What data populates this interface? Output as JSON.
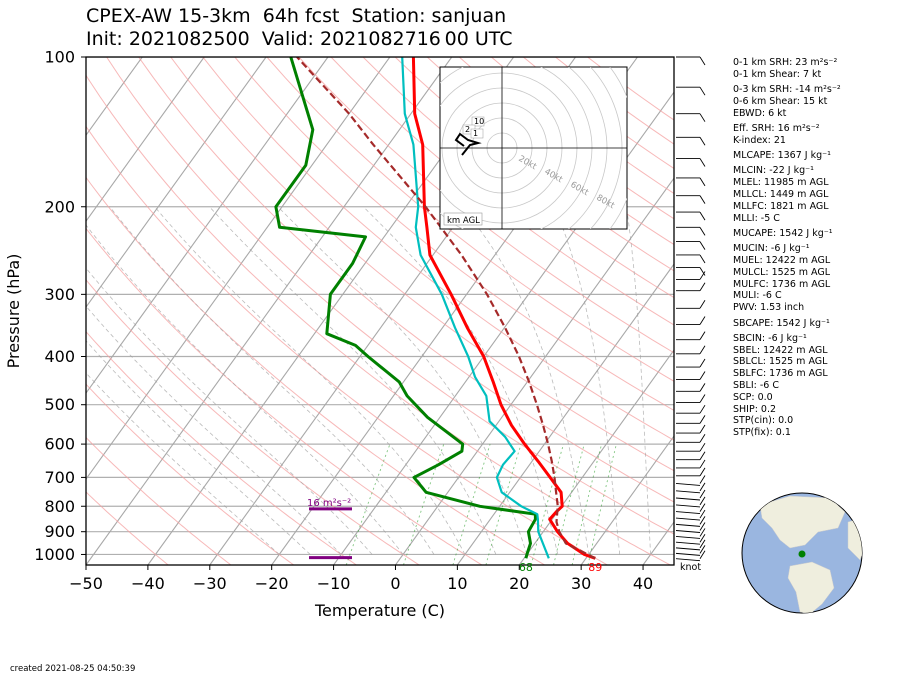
{
  "header": {
    "title_line1": "CPEX-AW 15-3km  64h fcst  Station: sanjuan",
    "title_line2": "Init: 2021082500  Valid: 2021082716 00 UTC"
  },
  "footer": {
    "created": "created 2021-08-25 04:50:39"
  },
  "stats": [
    {
      "label": "0-1 km SRH: 23 m²s⁻²"
    },
    {
      "label": "0-1 km Shear: 7 kt"
    },
    {
      "label": "0-3 km SRH: -14 m²s⁻²"
    },
    {
      "label": "0-6 km Shear: 15 kt"
    },
    {
      "label": "EBWD: 6 kt"
    },
    {
      "label": "Eff. SRH: 16 m²s⁻²"
    },
    {
      "label": "K-index: 21"
    },
    {
      "label": "MLCAPE: 1367 J kg⁻¹"
    },
    {
      "label": "MLCIN: -22 J kg⁻¹"
    },
    {
      "label": "MLEL: 11985 m AGL"
    },
    {
      "label": "MLLCL: 1449 m AGL"
    },
    {
      "label": "MLLFC: 1821 m AGL"
    },
    {
      "label": "MLLI: -5 C"
    },
    {
      "label": "MUCAPE: 1542 J kg⁻¹"
    },
    {
      "label": "MUCIN: -6 J kg⁻¹"
    },
    {
      "label": "MUEL: 12422 m AGL"
    },
    {
      "label": "MULCL: 1525 m AGL"
    },
    {
      "label": "MULFC: 1736 m AGL"
    },
    {
      "label": "MULI: -6 C"
    },
    {
      "label": "PWV: 1.53 inch"
    },
    {
      "label": "SBCAPE: 1542 J kg⁻¹"
    },
    {
      "label": "SBCIN: -6 J kg⁻¹"
    },
    {
      "label": "SBEL: 12422 m AGL"
    },
    {
      "label": "SBLCL: 1525 m AGL"
    },
    {
      "label": "SBLFC: 1736 m AGL"
    },
    {
      "label": "SBLI: -6 C"
    },
    {
      "label": "SCP: 0.0"
    },
    {
      "label": "SHIP: 0.2"
    },
    {
      "label": "STP(cin): 0.0"
    },
    {
      "label": "STP(fix): 0.1"
    }
  ],
  "chart_data": {
    "type": "line",
    "subtype": "skew-T log-P",
    "xlabel": "Temperature (C)",
    "ylabel": "Pressure (hPa)",
    "xlim": [
      -50,
      45
    ],
    "ylim": [
      1050,
      100
    ],
    "yscale": "log",
    "xticks": [
      "−50",
      "−40",
      "−30",
      "−20",
      "−10",
      "0",
      "10",
      "20",
      "30",
      "40"
    ],
    "yticks": [
      {
        "p": 100,
        "label": "100"
      },
      {
        "p": 200,
        "label": "200"
      },
      {
        "p": 300,
        "label": "300"
      },
      {
        "p": 400,
        "label": "400"
      },
      {
        "p": 500,
        "label": "500"
      },
      {
        "p": 600,
        "label": "600"
      },
      {
        "p": 700,
        "label": "700"
      },
      {
        "p": 800,
        "label": "800"
      },
      {
        "p": 900,
        "label": "900"
      },
      {
        "p": 1000,
        "label": "1000"
      }
    ],
    "colors": {
      "temperature": "#ff0000",
      "dewpoint": "#008000",
      "wetbulb": "#00bfbf",
      "parcel": "#a52a2a",
      "srh": "#800080"
    },
    "series": [
      {
        "key": "temperature",
        "points": [
          [
            1018,
            31.5
          ],
          [
            1000,
            29.3
          ],
          [
            950,
            25.3
          ],
          [
            900,
            22.3
          ],
          [
            850,
            19.6
          ],
          [
            820,
            19.8
          ],
          [
            800,
            20.1
          ],
          [
            750,
            18.3
          ],
          [
            700,
            14.8
          ],
          [
            650,
            11.0
          ],
          [
            600,
            6.8
          ],
          [
            550,
            2.5
          ],
          [
            500,
            -1.6
          ],
          [
            450,
            -5.5
          ],
          [
            400,
            -10.0
          ],
          [
            350,
            -16.0
          ],
          [
            300,
            -22.5
          ],
          [
            250,
            -30.5
          ],
          [
            220,
            -34.2
          ],
          [
            200,
            -37.0
          ],
          [
            150,
            -44.5
          ],
          [
            130,
            -49.4
          ],
          [
            100,
            -56.2
          ]
        ]
      },
      {
        "key": "dewpoint",
        "points": [
          [
            1018,
            20.3
          ],
          [
            1000,
            20.0
          ],
          [
            950,
            19.3
          ],
          [
            900,
            17.6
          ],
          [
            850,
            17.3
          ],
          [
            830,
            16.7
          ],
          [
            800,
            6.8
          ],
          [
            750,
            -3.5
          ],
          [
            700,
            -7.2
          ],
          [
            660,
            -4.7
          ],
          [
            620,
            -2.5
          ],
          [
            600,
            -3.2
          ],
          [
            530,
            -12.0
          ],
          [
            480,
            -17.8
          ],
          [
            450,
            -20.7
          ],
          [
            400,
            -28.7
          ],
          [
            380,
            -32.0
          ],
          [
            360,
            -38.0
          ],
          [
            300,
            -42.0
          ],
          [
            260,
            -42.0
          ],
          [
            230,
            -43.0
          ],
          [
            220,
            -58.0
          ],
          [
            200,
            -61.0
          ],
          [
            165,
            -61.0
          ],
          [
            140,
            -64.0
          ],
          [
            100,
            -76.0
          ]
        ]
      },
      {
        "key": "wetbulb",
        "points": [
          [
            1018,
            24.0
          ],
          [
            950,
            21.3
          ],
          [
            900,
            19.2
          ],
          [
            850,
            17.7
          ],
          [
            830,
            17.0
          ],
          [
            800,
            13.5
          ],
          [
            750,
            8.7
          ],
          [
            700,
            6.2
          ],
          [
            660,
            5.7
          ],
          [
            620,
            6.0
          ],
          [
            580,
            2.8
          ],
          [
            540,
            -1.5
          ],
          [
            480,
            -5.0
          ],
          [
            440,
            -9.0
          ],
          [
            400,
            -12.5
          ],
          [
            350,
            -18.0
          ],
          [
            300,
            -24.0
          ],
          [
            250,
            -32.0
          ],
          [
            220,
            -36.0
          ],
          [
            200,
            -38.0
          ],
          [
            150,
            -46.0
          ],
          [
            130,
            -51.0
          ],
          [
            100,
            -58.0
          ]
        ]
      },
      {
        "key": "parcel",
        "points": [
          [
            1018,
            31.5
          ],
          [
            950,
            25.0
          ],
          [
            900,
            22.6
          ],
          [
            860,
            21.0
          ],
          [
            830,
            20.2
          ],
          [
            800,
            19.4
          ],
          [
            750,
            17.5
          ],
          [
            700,
            15.5
          ],
          [
            650,
            13.2
          ],
          [
            600,
            10.6
          ],
          [
            550,
            7.6
          ],
          [
            500,
            4.2
          ],
          [
            450,
            0.3
          ],
          [
            400,
            -4.3
          ],
          [
            350,
            -9.9
          ],
          [
            300,
            -16.7
          ],
          [
            250,
            -25.4
          ],
          [
            200,
            -36.8
          ],
          [
            150,
            -52.5
          ],
          [
            130,
            -60.0
          ],
          [
            100,
            -75.0
          ]
        ]
      }
    ],
    "surface_labels": [
      {
        "key": "dewpoint",
        "text": "68",
        "color": "#008000"
      },
      {
        "key": "temperature",
        "text": "89",
        "color": "#ff0000"
      }
    ],
    "srh_markers": [
      {
        "p": 1015,
        "label": ""
      },
      {
        "p": 810,
        "label": "16 m²s⁻²"
      }
    ],
    "wind_unit": "knot",
    "hodograph": {
      "label": "km AGL",
      "ring_labels": [
        "20kt",
        "40kt",
        "60kt",
        "80kt"
      ],
      "height_labels": [
        "10",
        "2",
        "1"
      ]
    }
  }
}
